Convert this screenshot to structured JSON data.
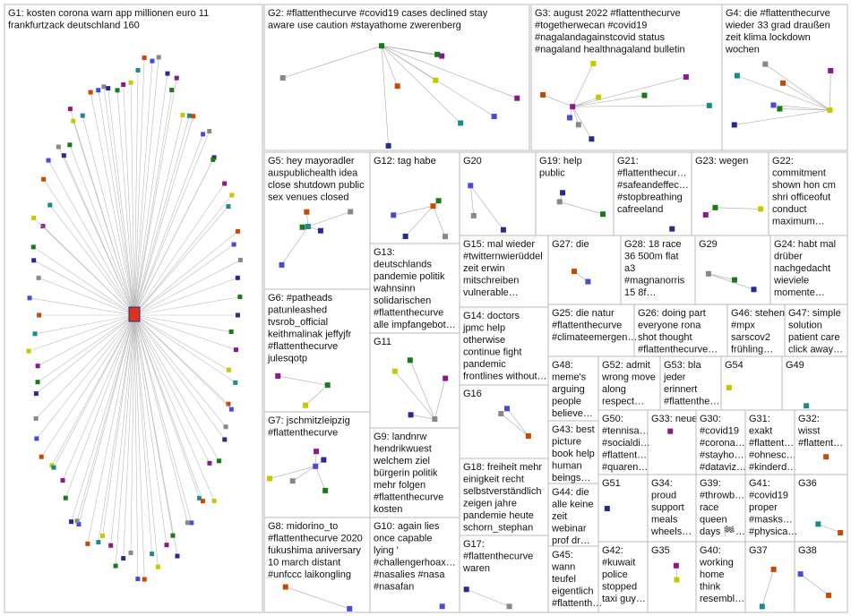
{
  "groups": [
    {
      "lines": [
        "G1: kosten corona warn app millionen euro 11",
        "frankfurtzack deutschland 160"
      ]
    },
    {
      "lines": [
        "G2: #flattenthecurve #covid19 cases declined stay",
        "aware use caution #stayathome zwerenberg"
      ]
    },
    {
      "lines": [
        "G3: august 2022 #flattenthecurve",
        "#togetherwecan #covid19",
        "#nagalandagainstcovid status",
        "#nagaland healthnagaland bulletin"
      ]
    },
    {
      "lines": [
        "G4: die #flattenthecurve",
        "wieder 33 grad draußen",
        "zeit klima lockdown",
        "wochen"
      ]
    },
    {
      "lines": [
        "G5: hey mayoradler",
        "auspublichealth idea",
        "close shutdown public",
        "sex venues closed"
      ]
    },
    {
      "lines": [
        "G12: tag habe"
      ]
    },
    {
      "lines": [
        "G20"
      ]
    },
    {
      "lines": [
        "G19: help",
        "public"
      ]
    },
    {
      "lines": [
        "G21:",
        "#flattenthecur…",
        "#safeandeffec…",
        "#stopbreathing",
        "cafreeland"
      ]
    },
    {
      "lines": [
        "G23: wegen"
      ]
    },
    {
      "lines": [
        "G22:",
        "commitment",
        "shown hon cm",
        "shri officeofut",
        "conduct",
        "maximum…"
      ]
    },
    {
      "lines": [
        "G13:",
        "deutschlands",
        "pandemie politik",
        "wahnsinn",
        "solidarischen",
        "#flattenthecurve",
        "alle impfangebot…"
      ]
    },
    {
      "lines": [
        "G15: mal wieder",
        "#twitternwierüddel",
        "zeit erwin",
        "mitschreiben",
        "vulnerable…"
      ]
    },
    {
      "lines": [
        "G27: die"
      ]
    },
    {
      "lines": [
        "G28: 18 race",
        "36 500m flat",
        "a3",
        "#magnanorris",
        "15 8f…"
      ]
    },
    {
      "lines": [
        "G29"
      ]
    },
    {
      "lines": [
        "G24: habt mal",
        "drüber",
        "nachgedacht",
        "wieviele",
        "momente…"
      ]
    },
    {
      "lines": [
        "G6: #patheads",
        "patunleashed",
        "tvsrob_official",
        "keithmalinak jeffyjfr",
        "#flattenthecurve",
        "julesqotp"
      ]
    },
    {
      "lines": [
        "G14: doctors",
        "jpmc help",
        "otherwise",
        "continue fight",
        "pandemic",
        "frontlines without…"
      ]
    },
    {
      "lines": [
        "G25: die natur",
        "#flattenthecurve",
        "#climateemergen…"
      ]
    },
    {
      "lines": [
        "G26: doing part",
        "everyone rona",
        "shot thought",
        "#flattenthecurve…"
      ]
    },
    {
      "lines": [
        "G46: stehen",
        "#mpx",
        "sarscov2",
        "frühling…"
      ]
    },
    {
      "lines": [
        "G47: simple",
        "solution",
        "patient care",
        "click away…"
      ]
    },
    {
      "lines": [
        "G11"
      ]
    },
    {
      "lines": [
        "G48:",
        "meme's",
        "arguing",
        "people",
        "believe…"
      ]
    },
    {
      "lines": [
        "G52: admit",
        "wrong move",
        "along",
        "respect…"
      ]
    },
    {
      "lines": [
        "G53: bla",
        "jeder",
        "erinnert",
        "#flattenthe…"
      ]
    },
    {
      "lines": [
        "G54"
      ]
    },
    {
      "lines": [
        "G49"
      ]
    },
    {
      "lines": [
        "G16"
      ]
    },
    {
      "lines": [
        "G7: jschmitzleipzig",
        "#flattenthecurve"
      ]
    },
    {
      "lines": [
        "G9: landnrw",
        "hendrikwuest",
        "welchem ziel",
        "bürgerin politik",
        "mehr folgen",
        "#flattenthecurve",
        "kosten"
      ]
    },
    {
      "lines": [
        "G43: best",
        "picture",
        "book help",
        "human",
        "beings…"
      ]
    },
    {
      "lines": [
        "G50:",
        "#tennisa…",
        "#socialdi…",
        "#flattent…",
        "#quaren…"
      ]
    },
    {
      "lines": [
        "G33: neue"
      ]
    },
    {
      "lines": [
        "G30:",
        "#covid19",
        "#corona…",
        "#stayho…",
        "#dataviz…"
      ]
    },
    {
      "lines": [
        "G31:",
        "exakt",
        "#flattent…",
        "#ohnesc…",
        "#kinderd…"
      ]
    },
    {
      "lines": [
        "G32:",
        "wisst",
        "#flattent…"
      ]
    },
    {
      "lines": [
        "G18: freiheit mehr",
        "einigkeit recht",
        "selbstverständlich",
        "zeigen jahre",
        "pandemie heute",
        "schorn_stephan"
      ]
    },
    {
      "lines": [
        "G44: die",
        "alle keine",
        "zeit",
        "webinar",
        "prof dr…"
      ]
    },
    {
      "lines": [
        "G51"
      ]
    },
    {
      "lines": [
        "G34:",
        "proud",
        "support",
        "meals",
        "wheels…"
      ]
    },
    {
      "lines": [
        "G39:",
        "#throwb…",
        "race",
        "queen",
        "days 🏁…"
      ]
    },
    {
      "lines": [
        "G41:",
        "#covid19",
        "proper",
        "#masks…",
        "#physica…"
      ]
    },
    {
      "lines": [
        "G36"
      ]
    },
    {
      "lines": [
        "G8: midorino_to",
        "#flattenthecurve 2020",
        "fukushima aniversary",
        "10 march distant",
        "#unfccc laikongling"
      ]
    },
    {
      "lines": [
        "G10: again lies",
        "once capable",
        "lying '",
        "#challengerhoax…",
        "#nasalies #nasa",
        "#nasafan"
      ]
    },
    {
      "lines": [
        "G17:",
        "#flattenthecurve",
        "waren"
      ]
    },
    {
      "lines": [
        "G45:",
        "wann",
        "teufel",
        "eigentlich",
        "#flattenth…"
      ]
    },
    {
      "lines": [
        "G42:",
        "#kuwait",
        "police",
        "stopped",
        "taxi guy…"
      ]
    },
    {
      "lines": [
        "G35"
      ]
    },
    {
      "lines": [
        "G40:",
        "working",
        "home",
        "think",
        "resembl…"
      ]
    },
    {
      "lines": [
        "G37"
      ]
    },
    {
      "lines": [
        "G38"
      ]
    }
  ]
}
